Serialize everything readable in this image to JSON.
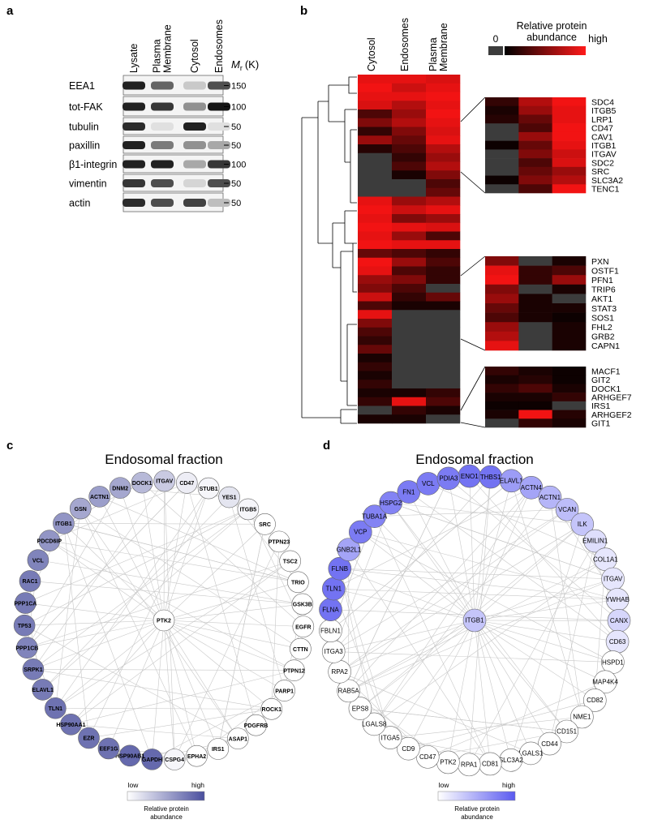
{
  "panels": {
    "a": {
      "label": "a",
      "lanes": [
        {
          "lines": [
            "Lysate"
          ]
        },
        {
          "lines": [
            "Plasma",
            "Membrane"
          ]
        },
        {
          "lines": [
            "Cytosol"
          ]
        },
        {
          "lines": [
            "Endosomes"
          ]
        }
      ],
      "mr": {
        "symbol": "M",
        "subscript": "r",
        "unit": "(K)"
      },
      "rows": [
        {
          "protein": "EEA1",
          "marker": 150,
          "bands": [
            0.9,
            0.6,
            0.15,
            0.7
          ]
        },
        {
          "protein": "tot-FAK",
          "marker": 100,
          "bands": [
            0.9,
            0.8,
            0.4,
            0.95
          ]
        },
        {
          "protein": "tubulin",
          "marker": 50,
          "bands": [
            0.85,
            0.05,
            0.9,
            0.05
          ]
        },
        {
          "protein": "paxillin",
          "marker": 50,
          "bands": [
            0.9,
            0.5,
            0.4,
            0.3
          ]
        },
        {
          "protein": "β1-integrin",
          "marker": 100,
          "bands": [
            0.9,
            0.9,
            0.3,
            0.8
          ]
        },
        {
          "protein": "vimentin",
          "marker": 50,
          "bands": [
            0.8,
            0.7,
            0.1,
            0.7
          ]
        },
        {
          "protein": "actin",
          "marker": 50,
          "bands": [
            0.85,
            0.7,
            0.75,
            0.2
          ]
        }
      ]
    },
    "b": {
      "label": "b",
      "columns": [
        {
          "lines": [
            "Cytosol"
          ]
        },
        {
          "lines": [
            "Endosomes"
          ]
        },
        {
          "lines": [
            "Plasma",
            "Membrane"
          ]
        }
      ],
      "legend": {
        "title": [
          "Relative protein",
          "abundance"
        ],
        "min": "0",
        "max": "high"
      },
      "heatmap": [
        [
          0.9,
          0.9,
          0.85
        ],
        [
          0.95,
          0.8,
          0.9
        ],
        [
          0.9,
          0.9,
          0.95
        ],
        [
          0.85,
          0.7,
          0.9
        ],
        [
          0.3,
          0.6,
          0.95
        ],
        [
          0.5,
          0.7,
          0.9
        ],
        [
          0.2,
          0.5,
          0.85
        ],
        [
          0.6,
          0.4,
          0.9
        ],
        [
          0.15,
          0.3,
          0.7
        ],
        [
          0,
          0.2,
          0.6
        ],
        [
          0,
          0.3,
          0.7
        ],
        [
          0,
          0.1,
          0.5
        ],
        [
          0,
          0,
          0.3
        ],
        [
          0,
          0,
          0.4
        ],
        [
          0.9,
          0.6,
          0.7
        ],
        [
          0.95,
          0.8,
          0.9
        ],
        [
          0.9,
          0.5,
          0.6
        ],
        [
          0.95,
          0.9,
          0.85
        ],
        [
          0.9,
          0.6,
          0.3
        ],
        [
          0.95,
          0.9,
          0.9
        ],
        [
          0.4,
          0.3,
          0.2
        ],
        [
          0.95,
          0.6,
          0.3
        ],
        [
          0.9,
          0.3,
          0.2
        ],
        [
          0.6,
          0.5,
          0.2
        ],
        [
          0.5,
          0.3,
          0
        ],
        [
          0.8,
          0.2,
          0.4
        ],
        [
          0.3,
          0.1,
          0.1
        ],
        [
          0.9,
          0,
          0
        ],
        [
          0.5,
          0,
          0
        ],
        [
          0.3,
          0,
          0
        ],
        [
          0.2,
          0,
          0
        ],
        [
          0.4,
          0,
          0
        ],
        [
          0.1,
          0,
          0
        ],
        [
          0.2,
          0,
          0
        ],
        [
          0.1,
          0,
          0
        ],
        [
          0.2,
          0,
          0
        ],
        [
          0.1,
          0.1,
          0.2
        ],
        [
          0.2,
          0.9,
          0.3
        ],
        [
          0,
          0.2,
          0.1
        ],
        [
          0.1,
          0.1,
          0
        ]
      ],
      "clusters": [
        {
          "genes": [
            "SDC4",
            "ITGB5",
            "LRP1",
            "CD47",
            "CAV1",
            "ITGB1",
            "ITGAV",
            "SDC2",
            "SRC",
            "SLC3A2",
            "TENC1"
          ],
          "values": [
            [
              0.2,
              0.7,
              0.95
            ],
            [
              0.1,
              0.6,
              0.9
            ],
            [
              0.15,
              0.4,
              0.9
            ],
            [
              0,
              0.3,
              0.95
            ],
            [
              0,
              0.6,
              0.95
            ],
            [
              0.05,
              0.4,
              0.9
            ],
            [
              0,
              0.5,
              0.8
            ],
            [
              0,
              0.3,
              0.85
            ],
            [
              0,
              0.4,
              0.6
            ],
            [
              0.05,
              0.5,
              0.7
            ],
            [
              0,
              0.3,
              0.95
            ]
          ]
        },
        {
          "genes": [
            "PXN",
            "OSTF1",
            "PFN1",
            "TRIP6",
            "AKT1",
            "STAT3",
            "SOS1",
            "FHL2",
            "GRB2",
            "CAPN1"
          ],
          "values": [
            [
              0.5,
              0,
              0.1
            ],
            [
              0.9,
              0.2,
              0.3
            ],
            [
              0.95,
              0.2,
              0.6
            ],
            [
              0.5,
              0,
              0.1
            ],
            [
              0.6,
              0.1,
              0
            ],
            [
              0.4,
              0.1,
              0.1
            ],
            [
              0.3,
              0.1,
              0.05
            ],
            [
              0.6,
              0,
              0.1
            ],
            [
              0.7,
              0,
              0.1
            ],
            [
              0.9,
              0,
              0.1
            ]
          ]
        },
        {
          "genes": [
            "MACF1",
            "GIT2",
            "DOCK1",
            "ARHGEF7",
            "IRS1",
            "ARHGEF2",
            "GIT1"
          ],
          "values": [
            [
              0.2,
              0.1,
              0.05
            ],
            [
              0.1,
              0.15,
              0.05
            ],
            [
              0.2,
              0.3,
              0.1
            ],
            [
              0.1,
              0.1,
              0.2
            ],
            [
              0.05,
              0.05,
              0
            ],
            [
              0.1,
              0.95,
              0.15
            ],
            [
              0,
              0.2,
              0.1
            ]
          ]
        }
      ]
    },
    "c": {
      "label": "c",
      "title": "Endosomal fraction",
      "color": "#4a4f9e",
      "center": {
        "name": "PTK2",
        "abundance": 0
      },
      "nodes": [
        {
          "name": "DOCK1",
          "abundance": 0.4
        },
        {
          "name": "ITGAV",
          "abundance": 0.3
        },
        {
          "name": "CD47",
          "abundance": 0.1
        },
        {
          "name": "STUB1",
          "abundance": 0.05
        },
        {
          "name": "YES1",
          "abundance": 0.15
        },
        {
          "name": "ITGB5",
          "abundance": 0.05
        },
        {
          "name": "SRC",
          "abundance": 0
        },
        {
          "name": "PTPN23",
          "abundance": 0
        },
        {
          "name": "TSC2",
          "abundance": 0
        },
        {
          "name": "TRIO",
          "abundance": 0
        },
        {
          "name": "GSK3B",
          "abundance": 0
        },
        {
          "name": "EGFR",
          "abundance": 0
        },
        {
          "name": "CTTN",
          "abundance": 0
        },
        {
          "name": "PTPN12",
          "abundance": 0
        },
        {
          "name": "PARP1",
          "abundance": 0
        },
        {
          "name": "ROCK1",
          "abundance": 0
        },
        {
          "name": "PDGFRB",
          "abundance": 0
        },
        {
          "name": "ASAP1",
          "abundance": 0
        },
        {
          "name": "IRS1",
          "abundance": 0
        },
        {
          "name": "EPHA2",
          "abundance": 0
        },
        {
          "name": "CSPG4",
          "abundance": 0.05
        },
        {
          "name": "GAPDH",
          "abundance": 0.85
        },
        {
          "name": "HSP90AB1",
          "abundance": 0.85
        },
        {
          "name": "EEF1G",
          "abundance": 0.8
        },
        {
          "name": "EZR",
          "abundance": 0.8
        },
        {
          "name": "HSP90AA1",
          "abundance": 0.8
        },
        {
          "name": "TLN1",
          "abundance": 0.8
        },
        {
          "name": "ELAVL1",
          "abundance": 0.75
        },
        {
          "name": "SRPK1",
          "abundance": 0.75
        },
        {
          "name": "PPP1CB",
          "abundance": 0.7
        },
        {
          "name": "TP53",
          "abundance": 0.75
        },
        {
          "name": "PPP1CA",
          "abundance": 0.75
        },
        {
          "name": "RAC1",
          "abundance": 0.75
        },
        {
          "name": "VCL",
          "abundance": 0.7
        },
        {
          "name": "PDCD6IP",
          "abundance": 0.6
        },
        {
          "name": "ITGB1",
          "abundance": 0.6
        },
        {
          "name": "GSN",
          "abundance": 0.5
        },
        {
          "name": "ACTN1",
          "abundance": 0.55
        },
        {
          "name": "DNM2",
          "abundance": 0.5
        }
      ],
      "legend": {
        "low": "low",
        "high": "high",
        "title": [
          "Relative protein",
          "abundance"
        ]
      }
    },
    "d": {
      "label": "d",
      "title": "Endosomal fraction",
      "color": "#5a5af0",
      "center": {
        "name": "ITGB1",
        "abundance": 0.35
      },
      "nodes": [
        {
          "name": "ENO1",
          "abundance": 0.85
        },
        {
          "name": "THBS1",
          "abundance": 0.85
        },
        {
          "name": "ELAVL1",
          "abundance": 0.6
        },
        {
          "name": "ACTN4",
          "abundance": 0.55
        },
        {
          "name": "ACTN1",
          "abundance": 0.45
        },
        {
          "name": "VCAN",
          "abundance": 0.4
        },
        {
          "name": "ILK",
          "abundance": 0.35
        },
        {
          "name": "EMILIN1",
          "abundance": 0.2
        },
        {
          "name": "COL1A1",
          "abundance": 0.15
        },
        {
          "name": "ITGAV",
          "abundance": 0.15
        },
        {
          "name": "YWHAB",
          "abundance": 0.15
        },
        {
          "name": "CANX",
          "abundance": 0.25
        },
        {
          "name": "CD63",
          "abundance": 0.15
        },
        {
          "name": "HSPD1",
          "abundance": 0
        },
        {
          "name": "MAP4K4",
          "abundance": 0
        },
        {
          "name": "CD82",
          "abundance": 0
        },
        {
          "name": "NME1",
          "abundance": 0
        },
        {
          "name": "CD151",
          "abundance": 0
        },
        {
          "name": "CD44",
          "abundance": 0
        },
        {
          "name": "LGALS1",
          "abundance": 0
        },
        {
          "name": "SLC3A2",
          "abundance": 0
        },
        {
          "name": "CD81",
          "abundance": 0
        },
        {
          "name": "RPA1",
          "abundance": 0
        },
        {
          "name": "PTK2",
          "abundance": 0
        },
        {
          "name": "CD47",
          "abundance": 0
        },
        {
          "name": "CD9",
          "abundance": 0
        },
        {
          "name": "ITGA5",
          "abundance": 0
        },
        {
          "name": "LGALS8",
          "abundance": 0
        },
        {
          "name": "EPS8",
          "abundance": 0
        },
        {
          "name": "RAB5A",
          "abundance": 0
        },
        {
          "name": "RPA2",
          "abundance": 0
        },
        {
          "name": "ITGA3",
          "abundance": 0
        },
        {
          "name": "FBLN1",
          "abundance": 0
        },
        {
          "name": "FLNA",
          "abundance": 0.85
        },
        {
          "name": "TLN1",
          "abundance": 0.85
        },
        {
          "name": "FLNB",
          "abundance": 0.85
        },
        {
          "name": "GNB2L1",
          "abundance": 0.55
        },
        {
          "name": "VCP",
          "abundance": 0.8
        },
        {
          "name": "TUBA1A",
          "abundance": 0.75
        },
        {
          "name": "HSPG2",
          "abundance": 0.75
        },
        {
          "name": "FN1",
          "abundance": 0.8
        },
        {
          "name": "VCL",
          "abundance": 0.8
        },
        {
          "name": "PDIA3",
          "abundance": 0.8
        }
      ],
      "legend": {
        "low": "low",
        "high": "high",
        "title": [
          "Relative protein",
          "abundance"
        ]
      }
    }
  }
}
